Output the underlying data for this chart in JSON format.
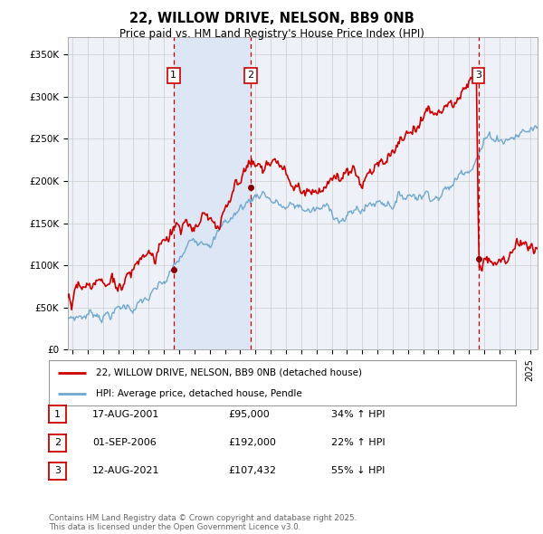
{
  "title": "22, WILLOW DRIVE, NELSON, BB9 0NB",
  "subtitle": "Price paid vs. HM Land Registry's House Price Index (HPI)",
  "xlim": [
    1994.7,
    2025.5
  ],
  "ylim": [
    0,
    370000
  ],
  "yticks": [
    0,
    50000,
    100000,
    150000,
    200000,
    250000,
    300000,
    350000
  ],
  "ytick_labels": [
    "£0",
    "£50K",
    "£100K",
    "£150K",
    "£200K",
    "£250K",
    "£300K",
    "£350K"
  ],
  "sale_dates": [
    2001.625,
    2006.667,
    2021.617
  ],
  "sale_prices": [
    95000,
    192000,
    107432
  ],
  "sale_labels": [
    "1",
    "2",
    "3"
  ],
  "legend_entries": [
    {
      "label": "22, WILLOW DRIVE, NELSON, BB9 0NB (detached house)",
      "color": "#cc0000"
    },
    {
      "label": "HPI: Average price, detached house, Pendle",
      "color": "#6fa8d0"
    }
  ],
  "table_rows": [
    {
      "num": "1",
      "date": "17-AUG-2001",
      "price": "£95,000",
      "hpi": "34% ↑ HPI"
    },
    {
      "num": "2",
      "date": "01-SEP-2006",
      "price": "£192,000",
      "hpi": "22% ↑ HPI"
    },
    {
      "num": "3",
      "date": "12-AUG-2021",
      "price": "£107,432",
      "hpi": "55% ↓ HPI"
    }
  ],
  "footnote": "Contains HM Land Registry data © Crown copyright and database right 2025.\nThis data is licensed under the Open Government Licence v3.0.",
  "bg_color": "#eef2f8",
  "shade_color": "#dce6f4",
  "grid_color": "#cccccc",
  "sale_line_color": "#cc0000",
  "hpi_line_color": "#6fa8d0"
}
